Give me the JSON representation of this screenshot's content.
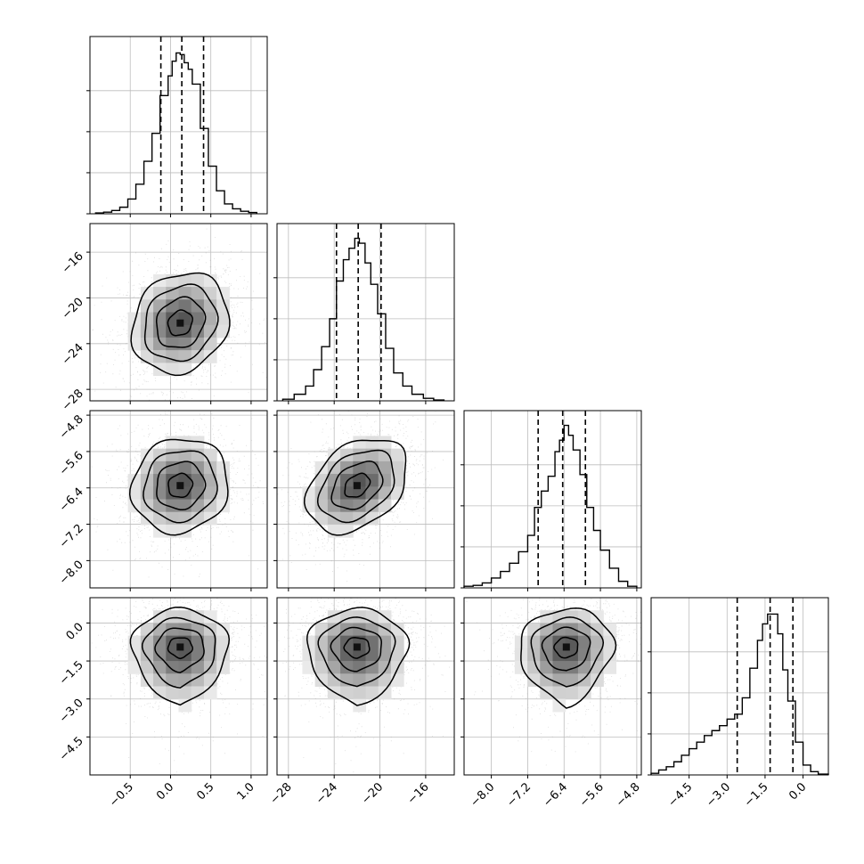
{
  "chart_data": {
    "type": "corner",
    "title": "",
    "n_params": 4,
    "params": [
      {
        "label": "",
        "range": [
          -1.0,
          1.2
        ],
        "ticks": [
          "-0.5",
          "0.0",
          "0.5",
          "1.0"
        ],
        "tick_values": [
          -0.5,
          0.0,
          0.5,
          1.0
        ],
        "quantiles": [
          -0.12,
          0.14,
          0.41
        ],
        "hist_bins": [
          -0.93,
          -0.83,
          -0.73,
          -0.63,
          -0.53,
          -0.43,
          -0.33,
          -0.23,
          -0.13,
          -0.03,
          0.02,
          0.07,
          0.12,
          0.17,
          0.22,
          0.27,
          0.37,
          0.47,
          0.57,
          0.67,
          0.77,
          0.87,
          0.97,
          1.07
        ],
        "hist_counts": [
          0.005,
          0.01,
          0.02,
          0.04,
          0.09,
          0.18,
          0.32,
          0.49,
          0.72,
          0.84,
          0.93,
          0.98,
          0.97,
          0.92,
          0.88,
          0.79,
          0.52,
          0.29,
          0.14,
          0.06,
          0.03,
          0.015,
          0.008
        ],
        "hist_ylim": [
          0,
          1.08
        ],
        "hist_yticks": [
          0.25,
          0.5,
          0.75
        ],
        "mode": 0.12
      },
      {
        "label": "",
        "range": [
          -29.0,
          -13.5
        ],
        "ticks": [
          "-28",
          "-24",
          "-20",
          "-16"
        ],
        "tick_values": [
          -28,
          -24,
          -20,
          -16
        ],
        "quantiles": [
          -23.8,
          -21.9,
          -19.9
        ],
        "hist_bins": [
          -28.5,
          -27.5,
          -26.5,
          -25.8,
          -25.1,
          -24.4,
          -23.8,
          -23.2,
          -22.7,
          -22.2,
          -21.8,
          -21.3,
          -20.8,
          -20.2,
          -19.5,
          -18.8,
          -18.0,
          -17.2,
          -16.2,
          -15.3,
          -14.4
        ],
        "hist_counts": [
          0.01,
          0.04,
          0.09,
          0.19,
          0.33,
          0.5,
          0.73,
          0.86,
          0.93,
          0.99,
          0.96,
          0.84,
          0.71,
          0.53,
          0.32,
          0.17,
          0.09,
          0.04,
          0.015,
          0.005
        ],
        "hist_ylim": [
          0,
          1.08
        ],
        "hist_yticks": [
          0.25,
          0.5,
          0.75
        ],
        "mode": -22.0
      },
      {
        "label": "",
        "range": [
          -8.6,
          -4.7
        ],
        "ticks": [
          "-8.0",
          "-7.2",
          "-6.4",
          "-5.6",
          "-4.8"
        ],
        "tick_values": [
          -8.0,
          -7.2,
          -6.4,
          -5.6,
          -4.8
        ],
        "quantiles": [
          -6.97,
          -6.43,
          -5.93
        ],
        "hist_bins": [
          -8.6,
          -8.4,
          -8.2,
          -8.0,
          -7.8,
          -7.6,
          -7.4,
          -7.2,
          -7.05,
          -6.9,
          -6.75,
          -6.6,
          -6.5,
          -6.4,
          -6.3,
          -6.2,
          -6.05,
          -5.9,
          -5.75,
          -5.6,
          -5.4,
          -5.2,
          -5.0,
          -4.8
        ],
        "hist_counts": [
          0.01,
          0.015,
          0.03,
          0.06,
          0.1,
          0.15,
          0.22,
          0.32,
          0.49,
          0.59,
          0.68,
          0.83,
          0.9,
          0.99,
          0.93,
          0.84,
          0.69,
          0.49,
          0.35,
          0.23,
          0.12,
          0.04,
          0.01
        ],
        "hist_ylim": [
          0,
          1.08
        ],
        "hist_yticks": [
          0.25,
          0.5,
          0.75
        ],
        "mode": -6.35
      },
      {
        "label": "",
        "range": [
          -6.0,
          1.0
        ],
        "ticks": [
          "-4.5",
          "-3.0",
          "-1.5",
          "0.0"
        ],
        "tick_values": [
          -4.5,
          -3.0,
          -1.5,
          0.0
        ],
        "quantiles": [
          -2.6,
          -1.3,
          -0.4
        ],
        "hist_bins": [
          -6.0,
          -5.7,
          -5.4,
          -5.1,
          -4.8,
          -4.5,
          -4.2,
          -3.9,
          -3.6,
          -3.3,
          -3.0,
          -2.7,
          -2.4,
          -2.1,
          -1.8,
          -1.6,
          -1.4,
          -1.2,
          -1.0,
          -0.8,
          -0.6,
          -0.3,
          0.0,
          0.3,
          0.6,
          1.0
        ],
        "hist_counts": [
          0.01,
          0.03,
          0.05,
          0.08,
          0.12,
          0.16,
          0.2,
          0.24,
          0.27,
          0.3,
          0.34,
          0.37,
          0.47,
          0.65,
          0.82,
          0.92,
          0.98,
          0.98,
          0.86,
          0.64,
          0.45,
          0.2,
          0.06,
          0.02,
          0.005
        ],
        "hist_ylim": [
          0,
          1.08
        ],
        "hist_yticks": [
          0.25,
          0.5,
          0.75
        ],
        "mode": -1.0
      }
    ],
    "pairs": [
      {
        "row": 1,
        "col": 0,
        "center": [
          0.12,
          -22.2
        ],
        "spread": [
          0.3,
          2.2
        ],
        "rho": 0.15,
        "skew_y": 0.0
      },
      {
        "row": 2,
        "col": 0,
        "center": [
          0.12,
          -6.35
        ],
        "spread": [
          0.3,
          0.52
        ],
        "rho": 0.08,
        "skew_y": 0.0
      },
      {
        "row": 2,
        "col": 1,
        "center": [
          -22.0,
          -6.35
        ],
        "spread": [
          2.2,
          0.52
        ],
        "rho": 0.35,
        "skew_y": 0.0
      },
      {
        "row": 3,
        "col": 0,
        "center": [
          0.12,
          -0.95
        ],
        "spread": [
          0.3,
          0.75
        ],
        "rho": 0.0,
        "skew_y": -1.6
      },
      {
        "row": 3,
        "col": 1,
        "center": [
          -22.0,
          -0.95
        ],
        "spread": [
          2.2,
          0.75
        ],
        "rho": 0.0,
        "skew_y": -1.6
      },
      {
        "row": 3,
        "col": 2,
        "center": [
          -6.35,
          -0.95
        ],
        "spread": [
          0.52,
          0.75
        ],
        "rho": 0.05,
        "skew_y": -1.6
      }
    ],
    "contour_levels": [
      0.5,
      1.0,
      1.5,
      2.0
    ],
    "grid": true,
    "quantile_line_style": "dashed",
    "scatter_color": "#9e9e9e",
    "line_color": "#000000"
  }
}
